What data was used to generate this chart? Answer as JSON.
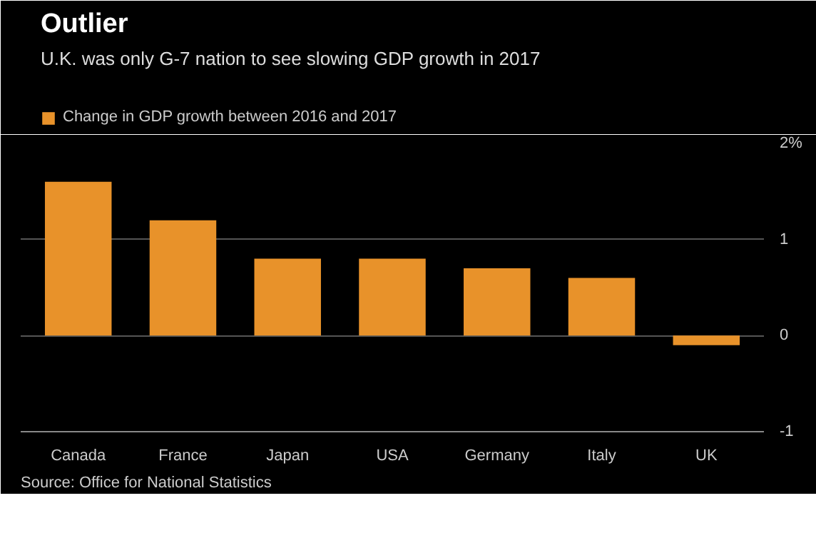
{
  "chart_data": {
    "type": "bar",
    "title": "Outlier",
    "subtitle": "U.K. was only G-7 nation to see slowing GDP growth in 2017",
    "categories": [
      "Canada",
      "France",
      "Japan",
      "USA",
      "Germany",
      "Italy",
      "UK"
    ],
    "series": [
      {
        "name": "Change in GDP growth between 2016 and 2017",
        "color": "#e8922a",
        "values": [
          1.6,
          1.2,
          0.8,
          0.8,
          0.7,
          0.6,
          -0.1
        ]
      }
    ],
    "ylim": [
      -1,
      2
    ],
    "yticks": [
      {
        "value": 2,
        "label": "2%"
      },
      1,
      0,
      -1
    ],
    "grid": "y",
    "legend": "top left",
    "annotations": [
      "Source: Office for National Statistics"
    ]
  }
}
